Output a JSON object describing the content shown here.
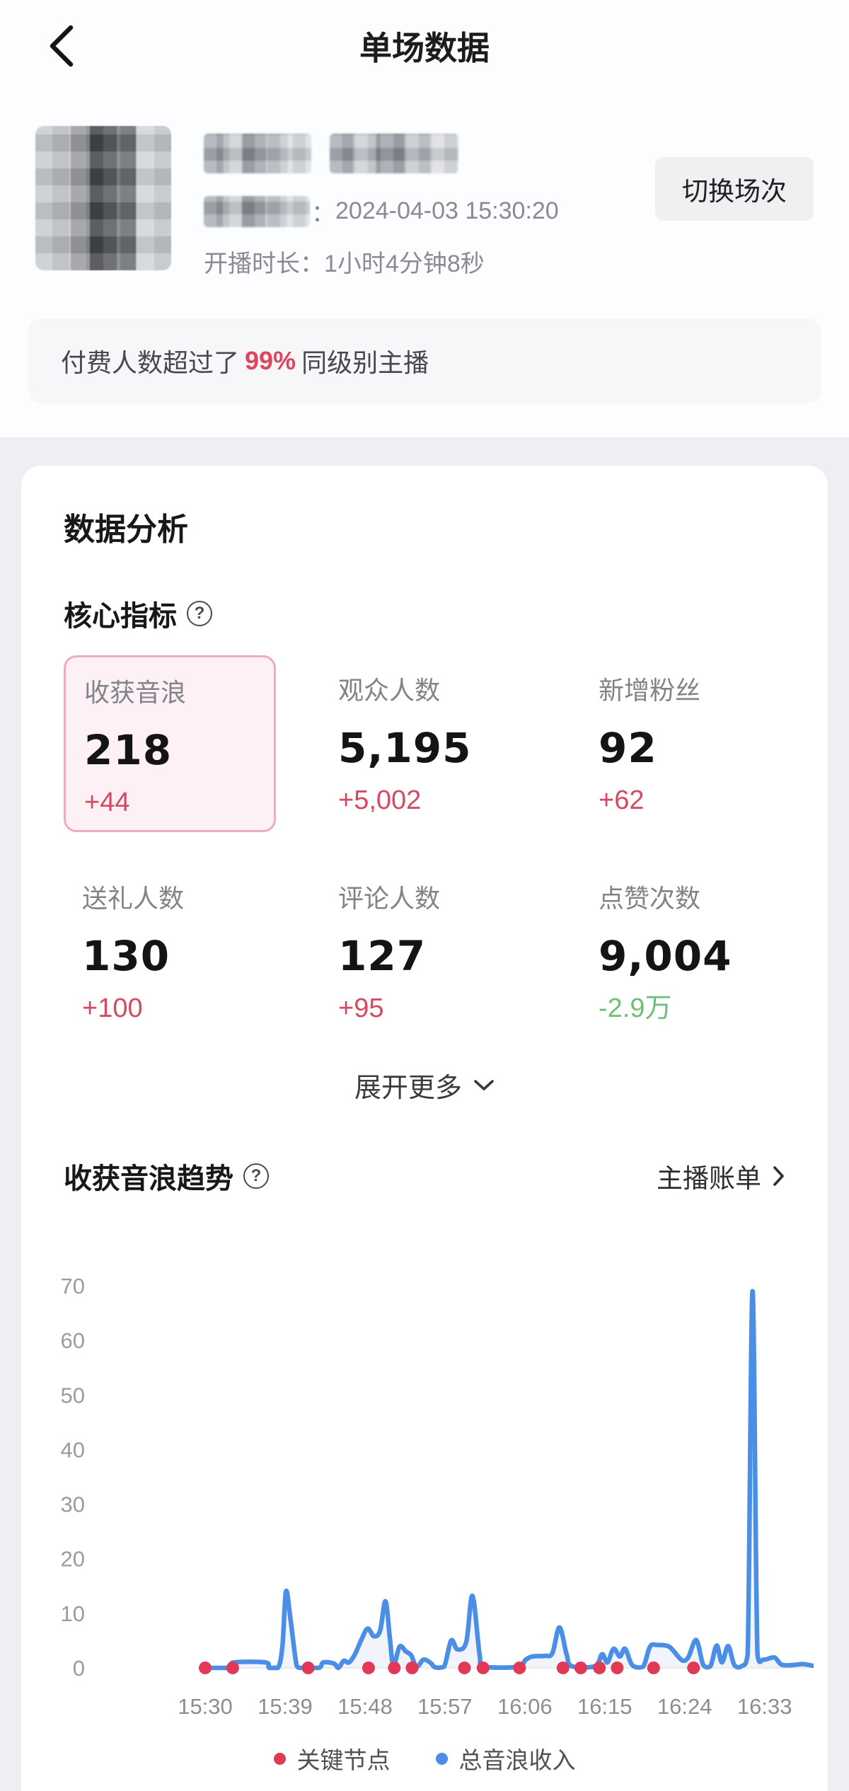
{
  "header": {
    "title": "单场数据"
  },
  "profile": {
    "start_time_separator": "：",
    "start_time": "2024-04-03 15:30:20",
    "duration_label": "开播时长：",
    "duration_value": "1小时4分钟8秒",
    "switch_button": "切换场次"
  },
  "banner": {
    "prefix": "付费人数超过了",
    "highlight": "99%",
    "suffix": "同级别主播"
  },
  "analysis": {
    "section_title": "数据分析",
    "core_title": "核心指标",
    "help_glyph": "?",
    "metrics": [
      {
        "label": "收获音浪",
        "value": "218",
        "delta": "+44"
      },
      {
        "label": "观众人数",
        "value": "5,195",
        "delta": "+5,002"
      },
      {
        "label": "新增粉丝",
        "value": "92",
        "delta": "+62"
      },
      {
        "label": "送礼人数",
        "value": "130",
        "delta": "+100"
      },
      {
        "label": "评论人数",
        "value": "127",
        "delta": "+95"
      },
      {
        "label": "点赞次数",
        "value": "9,004",
        "delta": "-2.9万"
      }
    ],
    "expand_more": "展开更多"
  },
  "trend": {
    "title": "收获音浪趋势",
    "help_glyph": "?",
    "bill_link": "主播账单"
  },
  "chart_data": {
    "type": "line",
    "title": "收获音浪趋势",
    "ylim": [
      0,
      70
    ],
    "y_ticks": [
      0,
      10,
      20,
      30,
      40,
      50,
      60,
      70
    ],
    "x_ticks": [
      {
        "minute": 0,
        "label": "15:30"
      },
      {
        "minute": 9,
        "label": "15:39"
      },
      {
        "minute": 18,
        "label": "15:48"
      },
      {
        "minute": 27,
        "label": "15:57"
      },
      {
        "minute": 36,
        "label": "16:06"
      },
      {
        "minute": 45,
        "label": "16:15"
      },
      {
        "minute": 54,
        "label": "16:24"
      },
      {
        "minute": 63,
        "label": "16:33"
      }
    ],
    "series": [
      {
        "name": "总音浪收入",
        "color": "#4a8ee6",
        "points": [
          [
            0,
            0
          ],
          [
            2.8,
            0
          ],
          [
            3.2,
            1
          ],
          [
            6.8,
            1
          ],
          [
            7.2,
            0
          ],
          [
            8.2,
            0
          ],
          [
            8.7,
            4
          ],
          [
            9.1,
            14
          ],
          [
            9.6,
            9
          ],
          [
            10.3,
            0.4
          ],
          [
            10.8,
            0
          ],
          [
            12.8,
            0
          ],
          [
            13.3,
            1
          ],
          [
            14.5,
            0.8
          ],
          [
            15,
            0
          ],
          [
            15.6,
            1.3
          ],
          [
            16.2,
            1
          ],
          [
            16.9,
            2.6
          ],
          [
            17.6,
            5.2
          ],
          [
            18.3,
            7.2
          ],
          [
            19,
            5.8
          ],
          [
            19.7,
            6.8
          ],
          [
            20.3,
            12.2
          ],
          [
            20.8,
            5.5
          ],
          [
            21.2,
            0.4
          ],
          [
            21.9,
            3.9
          ],
          [
            22.6,
            3
          ],
          [
            23.2,
            2.3
          ],
          [
            23.8,
            0.2
          ],
          [
            24.6,
            1.5
          ],
          [
            25.4,
            0.9
          ],
          [
            25.9,
            0.1
          ],
          [
            26.9,
            0.2
          ],
          [
            27.7,
            5
          ],
          [
            28.4,
            3.4
          ],
          [
            29.4,
            4.7
          ],
          [
            30.1,
            13.2
          ],
          [
            30.9,
            2.5
          ],
          [
            31.4,
            0.2
          ],
          [
            35.2,
            0.2
          ],
          [
            36.1,
            1.5
          ],
          [
            36.9,
            2.1
          ],
          [
            38.3,
            2.2
          ],
          [
            39.1,
            2.7
          ],
          [
            39.9,
            7.4
          ],
          [
            40.7,
            2.5
          ],
          [
            41.3,
            0.3
          ],
          [
            43.9,
            0.3
          ],
          [
            44.7,
            2.5
          ],
          [
            45.3,
            1
          ],
          [
            46,
            3.5
          ],
          [
            46.7,
            2.1
          ],
          [
            47.3,
            3.5
          ],
          [
            48.1,
            0.5
          ],
          [
            49.3,
            0.2
          ],
          [
            50.1,
            3.9
          ],
          [
            50.9,
            4.2
          ],
          [
            52.1,
            4
          ],
          [
            52.7,
            3.2
          ],
          [
            53.7,
            1.4
          ],
          [
            54.4,
            1.9
          ],
          [
            55.3,
            5.1
          ],
          [
            56.1,
            0.5
          ],
          [
            56.9,
            0.3
          ],
          [
            57.6,
            4.1
          ],
          [
            58.2,
            1
          ],
          [
            58.9,
            4
          ],
          [
            59.6,
            0.5
          ],
          [
            60.4,
            0.3
          ],
          [
            61.1,
            2.5
          ],
          [
            61.65,
            69
          ],
          [
            62.2,
            2.5
          ],
          [
            62.9,
            1.5
          ],
          [
            64.1,
            1.9
          ],
          [
            64.9,
            0.6
          ],
          [
            66.1,
            0.5
          ],
          [
            67.3,
            0.7
          ],
          [
            68.4,
            0.4
          ],
          [
            69.2,
            0.4
          ]
        ]
      }
    ],
    "key_nodes": {
      "name": "关键节点",
      "color": "#e23a56",
      "minutes": [
        0,
        3.1,
        11.6,
        18.4,
        21.3,
        23.3,
        29.2,
        31.3,
        35.4,
        40.3,
        42.3,
        44.4,
        46.4,
        50.5,
        55
      ]
    },
    "legend": [
      {
        "label": "关键节点",
        "color": "#e23a56"
      },
      {
        "label": "总音浪收入",
        "color": "#4a8ee6"
      }
    ],
    "area_fill": "rgba(116,160,220,0.10)",
    "baseline_color": "#ececec"
  },
  "colors": {
    "accent_red": "#e0455f",
    "delta_red": "#d44a63",
    "delta_green": "#6fbe78",
    "line_blue": "#4a8ee6",
    "node_red": "#e23a56",
    "selected_border": "#eeadbf",
    "selected_bg": "#fdf1f5"
  }
}
